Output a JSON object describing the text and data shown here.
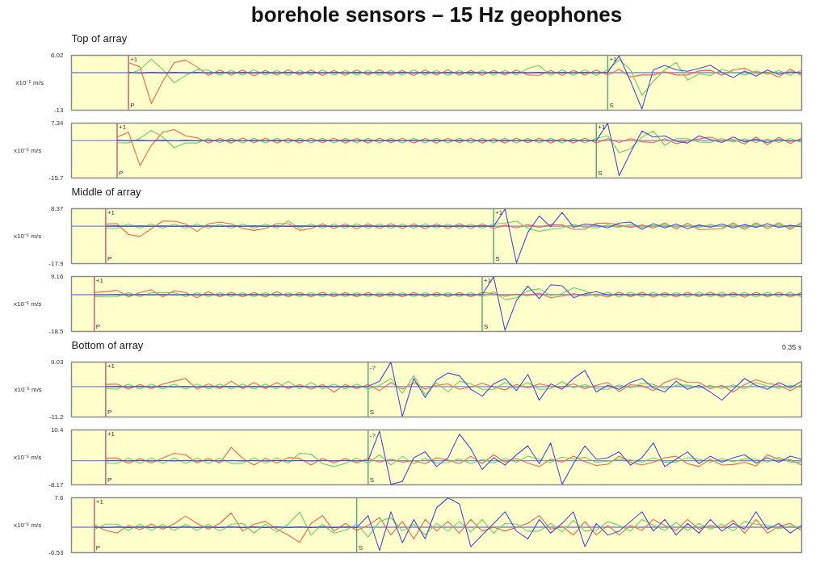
{
  "chart_data": [
    {
      "type": "line",
      "title": "borehole sensors – 15 Hz geophones",
      "subtitle": "Top of array",
      "ylabel": "x10⁻⁵ m/s",
      "categories": [
        null,
        null,
        null,
        null,
        null,
        "P",
        null,
        null,
        null,
        null,
        null,
        null,
        null,
        null,
        null,
        null,
        null,
        null,
        null,
        null,
        null,
        null,
        null,
        null,
        null,
        null,
        null,
        null,
        null,
        null,
        null,
        null,
        null,
        null,
        null,
        null,
        null,
        null,
        null,
        null,
        null,
        null,
        null,
        null,
        null,
        null,
        null,
        "S",
        null,
        null,
        null,
        null,
        null,
        null,
        null,
        null,
        null,
        null,
        null,
        null,
        null,
        null,
        null,
        null,
        null
      ],
      "ylim": [
        -13,
        6.02
      ],
      "yticks": [
        6.02,
        -13
      ],
      "ref_lines": [
        {
          "axis": "y",
          "value": 0,
          "color": "#8080e8"
        },
        {
          "axis": "x",
          "value": "P",
          "color": "#c05878"
        },
        {
          "axis": "x",
          "value": "S",
          "color": "#50a878"
        }
      ],
      "annotations": [
        {
          "text": "+1",
          "x": "P",
          "y": 6.02
        },
        {
          "text": "+1",
          "x": "S",
          "y": 6.02
        }
      ],
      "series": [
        {
          "color": "#ff6040",
          "values": [
            null,
            null,
            null,
            null,
            null,
            3.5,
            2.0,
            -10.7,
            -3.0,
            3.5,
            4.3,
            2.0,
            -0.9,
            0.9,
            -0.8,
            0.9,
            -1.1,
            0.8,
            -0.9,
            1.0,
            -0.8,
            0.9,
            -1.0,
            0.8,
            -0.9,
            0.9,
            -0.8,
            1.0,
            -0.9,
            0.8,
            -1.0,
            0.9,
            -0.8,
            1.0,
            -0.9,
            0.8,
            -0.9,
            0.8,
            -0.8,
            0.9,
            -0.8,
            -0.9,
            0.8,
            -0.9,
            0.8,
            -0.8,
            0.9,
            -0.8,
            1.2,
            -1.5,
            -0.8,
            -0.8,
            0.3,
            -0.8,
            -0.8,
            0.6,
            0.8,
            -0.9,
            1.0,
            1.5,
            -0.2,
            0.1,
            -1.5,
            1.2,
            -1.0
          ]
        },
        {
          "color": "#60d860",
          "values": [
            null,
            null,
            null,
            null,
            null,
            -0.5,
            1.0,
            4.7,
            1.0,
            -3.5,
            -1.0,
            1.0,
            0.8,
            -0.8,
            0.8,
            -0.8,
            1.0,
            -0.8,
            0.8,
            -0.9,
            0.8,
            -0.8,
            0.9,
            -0.8,
            0.8,
            -0.8,
            0.8,
            -0.9,
            0.8,
            -0.8,
            0.9,
            -0.8,
            0.8,
            -0.9,
            0.8,
            -0.8,
            0.8,
            -0.8,
            0.8,
            -0.8,
            1.5,
            2.5,
            -1.0,
            1.0,
            -1.0,
            1.0,
            -1.0,
            1.0,
            4.5,
            1.0,
            -7.8,
            -3.0,
            1.0,
            3.5,
            -2.6,
            -0.4,
            -1.0,
            1.0,
            0.2,
            -0.8,
            0.6,
            -0.6,
            0.8,
            -0.9,
            0.9
          ]
        },
        {
          "color": "#4848d8",
          "values": [
            null,
            null,
            null,
            null,
            null,
            0.2,
            -0.2,
            0.1,
            -0.1,
            0.1,
            -0.1,
            0.1,
            -0.1,
            0.1,
            -0.1,
            0.1,
            -0.1,
            0.1,
            -0.1,
            0.1,
            -0.1,
            0.1,
            -0.1,
            0.1,
            -0.1,
            0.1,
            -0.1,
            0.1,
            -0.1,
            0.1,
            -0.1,
            0.1,
            -0.1,
            0.1,
            -0.1,
            0.1,
            -0.1,
            0.1,
            -0.1,
            0.1,
            -0.1,
            0.1,
            -0.1,
            0.1,
            -0.1,
            0.1,
            -0.1,
            0.1,
            5.8,
            -3.0,
            -12.6,
            1.0,
            2.5,
            1.0,
            0.5,
            1.5,
            2.6,
            0.1,
            -1.7,
            0.6,
            -1.2,
            0.9,
            -0.6,
            0.3,
            -0.1
          ]
        }
      ]
    },
    {
      "type": "line",
      "ylabel": "x10⁻⁵ m/s",
      "categories": [
        null,
        null,
        null,
        null,
        "P",
        null,
        null,
        null,
        null,
        null,
        null,
        null,
        null,
        null,
        null,
        null,
        null,
        null,
        null,
        null,
        null,
        null,
        null,
        null,
        null,
        null,
        null,
        null,
        null,
        null,
        null,
        null,
        null,
        null,
        null,
        null,
        null,
        null,
        null,
        null,
        null,
        null,
        null,
        null,
        null,
        null,
        "S",
        null,
        null,
        null,
        null,
        null,
        null,
        null,
        null,
        null,
        null,
        null,
        null,
        null,
        null,
        null,
        null,
        null,
        null
      ],
      "ylim": [
        -15.7,
        7.34
      ],
      "yticks": [
        7.34,
        -15.7
      ],
      "ref_lines": [
        {
          "axis": "y",
          "value": 0,
          "color": "#8080e8"
        },
        {
          "axis": "x",
          "value": "P",
          "color": "#c05878"
        },
        {
          "axis": "x",
          "value": "S",
          "color": "#50a878"
        }
      ],
      "annotations": [
        {
          "text": "+1",
          "x": "P",
          "y": 7.34
        },
        {
          "text": "+1",
          "x": "S",
          "y": 7.34
        }
      ],
      "series": [
        {
          "color": "#ff6040",
          "values": [
            null,
            null,
            null,
            null,
            1.5,
            3.5,
            -10.5,
            -2.0,
            3.5,
            4.6,
            2.0,
            1.2,
            -1.0,
            0.9,
            -1.0,
            1.1,
            -0.9,
            1.0,
            -1.0,
            0.9,
            -1.0,
            1.0,
            -0.9,
            1.0,
            -1.0,
            0.9,
            -1.0,
            1.0,
            -0.9,
            1.0,
            -1.0,
            0.9,
            -1.0,
            1.0,
            -0.9,
            1.0,
            -1.0,
            0.9,
            -1.0,
            1.0,
            -0.9,
            1.0,
            -1.0,
            0.9,
            -1.0,
            1.0,
            -1.0,
            0.8,
            -0.8,
            0.8,
            -0.5,
            -0.8,
            0.8,
            -1.3,
            -0.1,
            0.7,
            1.5,
            0.0,
            0.5,
            -1.4,
            1.5,
            -1.7,
            1.4,
            -1.2,
            1.1
          ]
        },
        {
          "color": "#60d860",
          "values": [
            null,
            null,
            null,
            null,
            -0.9,
            -1.0,
            1.0,
            4.3,
            1.5,
            -3.0,
            -1.0,
            -1.0,
            0.9,
            -0.9,
            1.0,
            -1.0,
            1.0,
            -1.0,
            1.0,
            -1.0,
            1.0,
            -1.0,
            1.0,
            -1.0,
            1.0,
            -1.0,
            1.0,
            -1.0,
            1.0,
            -1.0,
            1.0,
            -1.0,
            1.0,
            -1.0,
            1.0,
            -1.0,
            1.0,
            -1.0,
            1.0,
            -1.0,
            1.0,
            -1.0,
            1.0,
            -1.0,
            1.0,
            -1.0,
            1.0,
            2.0,
            -5.0,
            -3.5,
            1.5,
            4.0,
            -2.0,
            0.8,
            0.8,
            -0.6,
            -0.8,
            0.9,
            -0.6,
            0.8,
            -0.8,
            0.6,
            -0.8,
            0.9,
            -0.8
          ]
        },
        {
          "color": "#4848d8",
          "values": [
            null,
            null,
            null,
            null,
            0.2,
            -0.1,
            0.1,
            -0.1,
            0.1,
            -0.1,
            0.1,
            -0.1,
            0.1,
            -0.1,
            0.1,
            -0.1,
            0.1,
            -0.1,
            0.1,
            -0.1,
            0.1,
            -0.1,
            0.1,
            -0.1,
            0.1,
            -0.1,
            0.1,
            -0.1,
            0.1,
            -0.1,
            0.1,
            -0.1,
            0.1,
            -0.1,
            0.1,
            -0.1,
            0.1,
            -0.1,
            0.1,
            -0.1,
            0.1,
            -0.1,
            0.1,
            -0.1,
            0.1,
            -0.1,
            0.1,
            7.2,
            -14.7,
            -5.0,
            4.0,
            1.5,
            2.0,
            -0.3,
            -1.0,
            2.0,
            0.5,
            -0.8,
            1.5,
            -0.5,
            0.6,
            -0.8,
            0.5,
            -0.3,
            0.2
          ]
        }
      ]
    },
    {
      "type": "line",
      "subtitle": "Middle of array",
      "ylabel": "x10⁻⁵ m/s",
      "categories": [
        null,
        null,
        null,
        "P",
        null,
        null,
        null,
        null,
        null,
        null,
        null,
        null,
        null,
        null,
        null,
        null,
        null,
        null,
        null,
        null,
        null,
        null,
        null,
        null,
        null,
        null,
        null,
        null,
        null,
        null,
        null,
        null,
        null,
        null,
        null,
        null,
        null,
        "S",
        null,
        null,
        null,
        null,
        null,
        null,
        null,
        null,
        null,
        null,
        null,
        null,
        null,
        null,
        null,
        null,
        null,
        null,
        null,
        null,
        null,
        null,
        null,
        null,
        null,
        null,
        null
      ],
      "ylim": [
        -17.9,
        8.37
      ],
      "yticks": [
        8.37,
        -17.9
      ],
      "ref_lines": [
        {
          "axis": "y",
          "value": 0,
          "color": "#8080e8"
        },
        {
          "axis": "x",
          "value": "P",
          "color": "#c05878"
        },
        {
          "axis": "x",
          "value": "S",
          "color": "#50a878"
        }
      ],
      "annotations": [
        {
          "text": "+1",
          "x": "P",
          "y": 8.37
        },
        {
          "text": "+1",
          "x": "S",
          "y": 8.37
        }
      ],
      "series": [
        {
          "color": "#ff6040",
          "values": [
            null,
            null,
            null,
            1.0,
            1.2,
            -4.0,
            -4.9,
            -1.2,
            2.5,
            2.4,
            1.1,
            -2.5,
            1.1,
            2.0,
            1.1,
            -1.1,
            -2.0,
            -1.1,
            1.2,
            1.2,
            -2.0,
            -1.1,
            1.1,
            -1.1,
            1.1,
            -1.2,
            1.1,
            -1.1,
            1.2,
            -1.1,
            1.1,
            -1.2,
            1.1,
            -1.1,
            1.2,
            -1.1,
            1.1,
            -1.1,
            0.5,
            -0.8,
            0.8,
            -0.6,
            0.8,
            0.6,
            -1.5,
            -1.5,
            1.4,
            1.5,
            0.5,
            -0.6,
            0.6,
            -0.9,
            1.6,
            -1.4,
            1.4,
            -1.6,
            -1.5,
            -1.3,
            1.6,
            -1.6,
            1.6,
            -1.2,
            1.7,
            -1.6,
            1.8
          ]
        },
        {
          "color": "#60d860",
          "values": [
            null,
            null,
            null,
            -1.0,
            -1.0,
            1.0,
            -1.0,
            1.0,
            -1.0,
            1.0,
            -1.0,
            1.0,
            -1.0,
            1.0,
            -1.0,
            1.0,
            -1.0,
            1.0,
            -1.0,
            2.5,
            -1.0,
            1.0,
            -1.0,
            1.0,
            -1.0,
            1.1,
            -1.0,
            1.0,
            -1.1,
            1.0,
            -1.0,
            1.1,
            -1.0,
            1.0,
            -1.1,
            1.0,
            -1.0,
            1.0,
            1.5,
            2.4,
            -1.0,
            -2.5,
            -1.5,
            -0.8,
            0.8,
            -0.5,
            -0.8,
            0.6,
            -0.6,
            1.0,
            -0.4,
            0.2,
            0.6,
            -0.4,
            0.4,
            -0.6,
            0.8,
            -0.3,
            0.6,
            -0.6,
            0.6,
            -0.2,
            0.7,
            -0.6,
            0.8
          ]
        },
        {
          "color": "#4848d8",
          "values": [
            null,
            null,
            null,
            0.0,
            0.1,
            -0.1,
            0.1,
            -0.1,
            0.1,
            -0.1,
            0.1,
            -0.1,
            0.1,
            -0.1,
            0.1,
            -0.1,
            0.1,
            -0.1,
            0.1,
            -0.1,
            0.1,
            -0.1,
            0.1,
            -0.1,
            0.1,
            -0.1,
            0.1,
            -0.1,
            0.1,
            -0.1,
            0.1,
            -0.1,
            0.1,
            -0.1,
            0.1,
            -0.1,
            0.1,
            -0.1,
            8.2,
            -17.5,
            -3.0,
            4.9,
            -0.3,
            6.6,
            -0.5,
            1.0,
            0.5,
            -0.8,
            1.5,
            2.0,
            -1.5,
            1.2,
            -0.8,
            1.0,
            -1.2,
            0.6,
            -0.5,
            1.0,
            -0.8,
            0.8,
            -0.6,
            1.2,
            -0.6,
            0.4,
            -0.3
          ]
        }
      ]
    },
    {
      "type": "line",
      "ylabel": "x10⁻⁵ m/s",
      "categories": [
        null,
        null,
        "P",
        null,
        null,
        null,
        null,
        null,
        null,
        null,
        null,
        null,
        null,
        null,
        null,
        null,
        null,
        null,
        null,
        null,
        null,
        null,
        null,
        null,
        null,
        null,
        null,
        null,
        null,
        null,
        null,
        null,
        null,
        null,
        null,
        null,
        "S",
        null,
        null,
        null,
        null,
        null,
        null,
        null,
        null,
        null,
        null,
        null,
        null,
        null,
        null,
        null,
        null,
        null,
        null,
        null,
        null,
        null,
        null,
        null,
        null,
        null,
        null,
        null,
        null
      ],
      "ylim": [
        -18.5,
        9.16
      ],
      "yticks": [
        9.16,
        -18.5
      ],
      "ref_lines": [
        {
          "axis": "y",
          "value": 0,
          "color": "#8080e8"
        },
        {
          "axis": "x",
          "value": "P",
          "color": "#c05878"
        },
        {
          "axis": "x",
          "value": "S",
          "color": "#50a878"
        }
      ],
      "annotations": [
        {
          "text": "+1",
          "x": "P",
          "y": 9.16
        },
        {
          "text": "+1",
          "x": "S",
          "y": 9.16
        }
      ],
      "series": [
        {
          "color": "#ff6040",
          "values": [
            null,
            null,
            1.1,
            1.5,
            2.2,
            -1.1,
            1.1,
            2.5,
            -1.1,
            2.0,
            1.1,
            -1.5,
            1.5,
            -1.1,
            1.2,
            -1.1,
            1.1,
            -1.2,
            1.5,
            -1.1,
            1.1,
            -1.1,
            1.2,
            -1.1,
            1.1,
            -1.1,
            1.1,
            -1.1,
            1.1,
            -1.1,
            1.1,
            -1.1,
            1.1,
            -1.1,
            1.1,
            -1.1,
            1.1,
            0.5,
            -0.8,
            0.3,
            -0.5,
            0.8,
            -1.5,
            -0.7,
            0.5,
            -0.6,
            0.3,
            -1.2,
            1.3,
            -1.1,
            1.2,
            -1.3,
            1.1,
            -1.2,
            1.2,
            -1.1,
            1.3,
            -1.2,
            1.1,
            -1.3,
            1.2,
            -1.1,
            1.2,
            -1.2,
            1.1
          ]
        },
        {
          "color": "#60d860",
          "values": [
            null,
            null,
            -1.0,
            -1.1,
            -1.0,
            1.0,
            -1.0,
            1.0,
            1.1,
            1.0,
            -1.0,
            1.0,
            -1.0,
            1.0,
            -1.0,
            1.0,
            -1.0,
            1.0,
            -1.0,
            1.0,
            -1.0,
            1.0,
            -1.0,
            1.0,
            -1.0,
            1.0,
            -1.0,
            1.0,
            -1.0,
            1.0,
            -1.0,
            1.0,
            -1.0,
            1.0,
            -1.0,
            1.0,
            -1.0,
            1.5,
            -2.5,
            -1.5,
            2.0,
            3.0,
            -0.5,
            0.5,
            3.5,
            2.0,
            -1.0,
            1.2,
            -1.2,
            1.3,
            -1.1,
            1.2,
            -1.2,
            1.1,
            -1.2,
            1.3,
            -1.1,
            1.2,
            -1.2,
            1.1,
            -1.2,
            1.2,
            -1.1,
            1.2,
            -1.2
          ]
        },
        {
          "color": "#4848d8",
          "values": [
            null,
            null,
            0.0,
            -0.1,
            0.1,
            -0.1,
            0.1,
            -0.1,
            0.1,
            -0.1,
            0.1,
            -0.1,
            0.1,
            -0.1,
            0.1,
            -0.1,
            0.1,
            -0.1,
            0.1,
            -0.1,
            0.1,
            -0.1,
            0.1,
            -0.1,
            0.1,
            -0.1,
            0.1,
            -0.1,
            0.1,
            -0.1,
            0.1,
            -0.1,
            0.1,
            -0.1,
            0.1,
            -0.1,
            0.1,
            9.0,
            -18.0,
            -3.0,
            4.3,
            -2.0,
            5.0,
            4.5,
            -1.5,
            0.5,
            1.5,
            -0.2,
            0.2,
            -0.2,
            0.2,
            -0.2,
            0.2,
            -0.2,
            0.2,
            -0.2,
            0.2,
            -0.2,
            0.2,
            -0.2,
            0.2,
            -0.2,
            0.2,
            -0.2,
            0.2
          ]
        }
      ]
    },
    {
      "type": "line",
      "subtitle": "Bottom of array",
      "ylabel": "x10⁻⁵ m/s",
      "categories": [
        null,
        null,
        null,
        "P",
        null,
        null,
        null,
        null,
        null,
        null,
        null,
        null,
        null,
        null,
        null,
        null,
        null,
        null,
        null,
        null,
        null,
        null,
        null,
        null,
        null,
        null,
        "S",
        null,
        null,
        null,
        null,
        null,
        null,
        null,
        null,
        null,
        null,
        null,
        null,
        null,
        null,
        null,
        null,
        null,
        null,
        null,
        null,
        null,
        null,
        null,
        null,
        null,
        null,
        null,
        null,
        null,
        null,
        null,
        null,
        null,
        null,
        null,
        null,
        null,
        null
      ],
      "ylim": [
        -11.2,
        9.03
      ],
      "yticks": [
        9.03,
        -11.2
      ],
      "ref_lines": [
        {
          "axis": "y",
          "value": 0,
          "color": "#8080e8"
        },
        {
          "axis": "x",
          "value": "P",
          "color": "#c05878"
        },
        {
          "axis": "x",
          "value": "S",
          "color": "#50a878"
        }
      ],
      "annotations": [
        {
          "text": "+1",
          "x": "P",
          "y": 9.03
        },
        {
          "text": "-?",
          "x": "S",
          "y": 9.03
        },
        "0.35 s"
      ],
      "series": [
        {
          "color": "#ff6040",
          "values": [
            null,
            null,
            null,
            0.8,
            0.9,
            -0.9,
            0.8,
            -0.8,
            0.9,
            2.0,
            3.0,
            -1.0,
            1.0,
            -0.8,
            2.0,
            -0.8,
            1.5,
            -0.8,
            1.5,
            -0.8,
            0.8,
            -1.0,
            0.8,
            -2.0,
            0.8,
            -0.8,
            0.8,
            -1.5,
            1.5,
            -1.0,
            1.5,
            -1.0,
            0.5,
            1.0,
            -1.0,
            -0.2,
            1.2,
            -0.2,
            -1.2,
            0.8,
            -0.5,
            1.0,
            0.2,
            -0.2,
            1.0,
            -0.8,
            0.5,
            1.5,
            -1.8,
            0.7,
            0.3,
            -1.5,
            1.5,
            3.0,
            1.6,
            1.5,
            -0.8,
            0.5,
            -2.0,
            0.8,
            2.5,
            1.2,
            0.5,
            -1.5,
            0.8
          ]
        },
        {
          "color": "#60d860",
          "values": [
            null,
            null,
            null,
            -0.8,
            -0.9,
            0.9,
            -0.9,
            0.9,
            -0.9,
            0.9,
            -0.9,
            0.9,
            -0.9,
            0.9,
            -0.9,
            0.9,
            -0.9,
            0.9,
            -0.9,
            2.0,
            -0.9,
            1.5,
            -0.9,
            0.9,
            -0.9,
            0.9,
            -0.9,
            0.5,
            3.0,
            -2.5,
            4.0,
            -3.0,
            1.5,
            -2.0,
            2.0,
            1.0,
            -1.0,
            -1.0,
            1.5,
            -0.5,
            1.5,
            -1.0,
            -0.8,
            1.8,
            -0.5,
            0.8,
            -0.8,
            -1.0,
            0.6,
            -0.5,
            1.2,
            0.8,
            -0.8,
            0.5,
            0.6,
            -0.5,
            0.5,
            -0.8,
            0.6,
            -0.8,
            1.5,
            0.2,
            -0.6,
            0.5,
            -0.3
          ]
        },
        {
          "color": "#4848d8",
          "values": [
            null,
            null,
            null,
            0.0,
            0.1,
            -0.1,
            0.1,
            -0.1,
            0.1,
            -0.1,
            0.1,
            -0.1,
            0.1,
            -0.1,
            0.1,
            -0.1,
            0.1,
            -0.1,
            0.1,
            -0.1,
            0.1,
            -0.1,
            0.1,
            -0.1,
            0.1,
            -0.1,
            0.1,
            2.0,
            9.0,
            -11.0,
            3.0,
            -4.0,
            2.5,
            5.0,
            4.0,
            -1.0,
            -3.5,
            1.0,
            3.0,
            -1.5,
            4.5,
            -5.0,
            1.0,
            -1.0,
            3.0,
            6.0,
            -2.0,
            0.5,
            -1.0,
            1.5,
            3.0,
            -0.5,
            -2.0,
            2.0,
            -1.0,
            0.5,
            -2.0,
            -5.0,
            -1.0,
            3.0,
            0.5,
            -1.0,
            1.5,
            -0.5,
            2.0
          ]
        }
      ]
    },
    {
      "type": "line",
      "ylabel": "x10⁻⁵ m/s",
      "categories": [
        null,
        null,
        null,
        "P",
        null,
        null,
        null,
        null,
        null,
        null,
        null,
        null,
        null,
        null,
        null,
        null,
        null,
        null,
        null,
        null,
        null,
        null,
        null,
        null,
        null,
        null,
        "S",
        null,
        null,
        null,
        null,
        null,
        null,
        null,
        null,
        null,
        null,
        null,
        null,
        null,
        null,
        null,
        null,
        null,
        null,
        null,
        null,
        null,
        null,
        null,
        null,
        null,
        null,
        null,
        null,
        null,
        null,
        null,
        null,
        null,
        null,
        null,
        null,
        null,
        null
      ],
      "ylim": [
        -8.17,
        10.4
      ],
      "yticks": [
        10.4,
        -8.17
      ],
      "ref_lines": [
        {
          "axis": "y",
          "value": 0,
          "color": "#8080e8"
        },
        {
          "axis": "x",
          "value": "P",
          "color": "#c05878"
        },
        {
          "axis": "x",
          "value": "S",
          "color": "#50a878"
        }
      ],
      "annotations": [
        {
          "text": "+1",
          "x": "P",
          "y": 10.4
        },
        {
          "text": "-?",
          "x": "S",
          "y": 10.4
        }
      ],
      "series": [
        {
          "color": "#ff6040",
          "values": [
            null,
            null,
            null,
            0.8,
            0.9,
            -0.9,
            0.8,
            -0.8,
            0.9,
            2.5,
            2.0,
            -0.8,
            0.8,
            -0.8,
            4.5,
            0.8,
            -1.5,
            0.8,
            -0.8,
            1.0,
            0.8,
            -1.5,
            0.8,
            -0.8,
            0.8,
            -0.8,
            0.8,
            -0.5,
            0.5,
            -0.5,
            0.0,
            -1.0,
            1.0,
            0.2,
            -1.0,
            1.5,
            -1.0,
            2.0,
            -0.5,
            0.8,
            -0.8,
            -2.0,
            0.5,
            -0.5,
            1.5,
            -0.3,
            -1.6,
            -1.2,
            1.5,
            -0.5,
            -1.5,
            -0.5,
            1.0,
            1.5,
            -1.0,
            -2.0,
            0.5,
            -1.5,
            -1.3,
            -0.5,
            -1.8,
            2.0,
            0.4,
            0.3,
            -1.5
          ]
        },
        {
          "color": "#60d860",
          "values": [
            null,
            null,
            null,
            -0.8,
            -0.9,
            0.9,
            -0.9,
            0.9,
            -0.9,
            0.9,
            -0.9,
            0.9,
            -0.9,
            0.9,
            -0.9,
            -0.9,
            1.0,
            -0.9,
            1.0,
            -0.9,
            2.5,
            2.2,
            -1.0,
            -2.0,
            -0.9,
            0.9,
            -0.9,
            2.0,
            -1.5,
            1.5,
            -1.0,
            0.8,
            -0.8,
            -0.6,
            0.6,
            -1.0,
            0.5,
            -0.8,
            0.8,
            -0.5,
            1.5,
            0.5,
            -0.6,
            1.2,
            0.5,
            1.2,
            -0.6,
            -0.2,
            0.5,
            0.3,
            -0.5,
            1.0,
            -0.5,
            -0.5,
            1.0,
            0.5,
            -0.5,
            0.8,
            -0.4,
            0.6,
            0.5,
            -0.5,
            1.2,
            -0.5,
            -0.5
          ]
        },
        {
          "color": "#4848d8",
          "values": [
            null,
            null,
            null,
            0.0,
            0.1,
            -0.1,
            0.1,
            -0.1,
            0.1,
            -0.1,
            0.1,
            -0.1,
            0.1,
            -0.1,
            0.1,
            -0.1,
            0.1,
            -0.1,
            0.1,
            -0.1,
            0.1,
            -0.1,
            0.1,
            -0.1,
            0.1,
            -0.1,
            0.1,
            10.0,
            -8.0,
            -7.0,
            1.0,
            3.0,
            -2.0,
            1.0,
            9.0,
            4.0,
            -3.0,
            1.0,
            -1.5,
            2.0,
            5.0,
            -1.0,
            6.0,
            -8.0,
            -1.0,
            5.0,
            0.5,
            1.0,
            3.0,
            -1.5,
            1.0,
            6.0,
            -2.0,
            0.5,
            3.0,
            -1.0,
            1.5,
            -0.5,
            1.0,
            2.0,
            -0.8,
            1.0,
            -0.5,
            1.5,
            0.5
          ]
        }
      ]
    },
    {
      "type": "line",
      "ylabel": "x10⁻⁵ m/s",
      "categories": [
        null,
        null,
        "P",
        null,
        null,
        null,
        null,
        null,
        null,
        null,
        null,
        null,
        null,
        null,
        null,
        null,
        null,
        null,
        null,
        null,
        null,
        null,
        null,
        null,
        null,
        "S",
        null,
        null,
        null,
        null,
        null,
        null,
        null,
        null,
        null,
        null,
        null,
        null,
        null,
        null,
        null,
        null,
        null,
        null,
        null,
        null,
        null,
        null,
        null,
        null,
        null,
        null,
        null,
        null,
        null,
        null,
        null,
        null,
        null,
        null,
        null,
        null,
        null,
        null,
        null
      ],
      "ylim": [
        -6.53,
        7.6
      ],
      "yticks": [
        7.6,
        -6.53
      ],
      "ref_lines": [
        {
          "axis": "y",
          "value": 0,
          "color": "#8080e8"
        },
        {
          "axis": "x",
          "value": "P",
          "color": "#c05878"
        },
        {
          "axis": "x",
          "value": "S",
          "color": "#50a878"
        }
      ],
      "annotations": [
        {
          "text": "+1",
          "x": "P",
          "y": 7.6
        }
      ],
      "series": [
        {
          "color": "#ff6040",
          "values": [
            null,
            null,
            0.6,
            -0.8,
            -1.5,
            0.5,
            -0.6,
            0.8,
            -0.5,
            0.9,
            2.9,
            1.0,
            -0.5,
            1.0,
            3.7,
            -1.0,
            0.8,
            1.5,
            -0.5,
            -2.0,
            -3.9,
            1.0,
            3.0,
            -1.0,
            1.0,
            -0.8,
            0.5,
            2.5,
            -2.0,
            1.5,
            -3.0,
            2.0,
            -1.0,
            1.5,
            -1.5,
            2.0,
            -1.0,
            0.0,
            -1.0,
            0.0,
            1.0,
            3.0,
            -0.5,
            0.2,
            -2.0,
            1.5,
            -2.0,
            0.5,
            -2.0,
            0.5,
            -0.8,
            2.0,
            0.5,
            -0.8,
            2.0,
            -0.5,
            0.5,
            -0.2,
            1.8,
            -1.5,
            2.0,
            -1.5,
            0.2,
            1.0,
            -0.9
          ]
        },
        {
          "color": "#60d860",
          "values": [
            null,
            null,
            -0.6,
            0.8,
            0.8,
            -0.8,
            0.8,
            -0.8,
            0.8,
            -0.8,
            0.8,
            -0.8,
            0.8,
            -1.0,
            0.8,
            1.0,
            -1.5,
            0.8,
            -1.2,
            0.8,
            3.9,
            -2.0,
            0.8,
            -1.5,
            -0.8,
            0.8,
            -2.5,
            1.5,
            2.5,
            -1.0,
            0.8,
            -2.0,
            1.0,
            -1.0,
            1.5,
            -1.2,
            2.0,
            -1.5,
            1.0,
            0.8,
            -1.0,
            -1.0,
            1.0,
            -1.2,
            1.8,
            -1.0,
            -0.8,
            1.5,
            0.5,
            -1.0,
            2.0,
            0.6,
            -0.8,
            1.2,
            -0.8,
            1.0,
            -0.5,
            0.8,
            -1.0,
            1.5,
            0.8,
            0.6,
            -0.4,
            0.3,
            -0.3
          ]
        },
        {
          "color": "#4848d8",
          "values": [
            null,
            null,
            0.0,
            -0.1,
            0.1,
            -0.1,
            0.1,
            -0.1,
            0.1,
            -0.1,
            0.1,
            -0.1,
            0.1,
            -0.1,
            0.1,
            -0.1,
            0.1,
            -0.1,
            0.1,
            -0.1,
            0.1,
            -0.1,
            0.1,
            -0.1,
            0.1,
            -0.1,
            3.0,
            -6.0,
            4.0,
            -4.0,
            2.0,
            -3.0,
            5.0,
            7.6,
            6.0,
            -5.0,
            -2.0,
            1.0,
            4.0,
            -1.0,
            -3.0,
            2.0,
            -1.5,
            1.0,
            4.0,
            -5.0,
            1.0,
            -2.0,
            -1.0,
            1.5,
            4.0,
            -1.0,
            2.0,
            -2.0,
            1.0,
            -1.5,
            2.0,
            -1.0,
            1.0,
            -0.5,
            4.0,
            -0.5,
            1.0,
            -1.5,
            0.5
          ]
        }
      ]
    }
  ]
}
